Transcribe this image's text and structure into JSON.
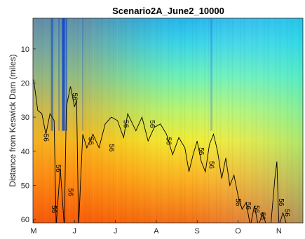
{
  "chart_data": {
    "type": "heatmap",
    "title": "Scenario2A_June2_10000",
    "xlabel": "",
    "ylabel": "Distance from Keswick Dam (miles)",
    "x_ticks": [
      "M",
      "J",
      "J",
      "A",
      "S",
      "O",
      "N"
    ],
    "y_ticks": [
      10,
      20,
      30,
      40,
      50,
      60
    ],
    "ylim": [
      61,
      1
    ],
    "y_reversed": true,
    "colormap": "jet",
    "contour": {
      "level": 56,
      "color": "#000000",
      "label": "56",
      "path_by_month": [
        [
          0.0,
          19
        ],
        [
          0.1,
          28
        ],
        [
          0.2,
          29
        ],
        [
          0.3,
          35
        ],
        [
          0.4,
          29
        ],
        [
          0.5,
          31
        ],
        [
          0.55,
          62
        ],
        [
          0.65,
          45
        ],
        [
          0.75,
          62
        ],
        [
          0.8,
          27
        ],
        [
          0.9,
          21
        ],
        [
          1.0,
          27
        ],
        [
          1.05,
          25
        ],
        [
          1.1,
          62
        ],
        [
          1.2,
          35
        ],
        [
          1.3,
          39
        ],
        [
          1.45,
          35
        ],
        [
          1.6,
          39
        ],
        [
          1.75,
          32
        ],
        [
          1.9,
          30
        ],
        [
          2.05,
          31
        ],
        [
          2.2,
          36
        ],
        [
          2.3,
          29
        ],
        [
          2.5,
          34
        ],
        [
          2.65,
          30
        ],
        [
          2.8,
          37
        ],
        [
          2.95,
          33
        ],
        [
          3.1,
          32
        ],
        [
          3.25,
          35
        ],
        [
          3.4,
          41
        ],
        [
          3.55,
          36
        ],
        [
          3.7,
          39
        ],
        [
          3.8,
          46
        ],
        [
          3.9,
          41
        ],
        [
          4.0,
          37
        ],
        [
          4.1,
          43
        ],
        [
          4.2,
          46
        ],
        [
          4.3,
          38
        ],
        [
          4.4,
          35
        ],
        [
          4.5,
          40
        ],
        [
          4.6,
          48
        ],
        [
          4.7,
          42
        ],
        [
          4.8,
          50
        ],
        [
          4.9,
          47
        ],
        [
          5.0,
          53
        ],
        [
          5.1,
          57
        ],
        [
          5.2,
          55
        ],
        [
          5.3,
          62
        ],
        [
          5.4,
          56
        ],
        [
          5.5,
          62
        ],
        [
          5.6,
          58
        ],
        [
          5.7,
          62
        ],
        [
          5.8,
          62
        ],
        [
          5.9,
          48
        ],
        [
          5.95,
          43
        ],
        [
          6.0,
          62
        ],
        [
          6.1,
          58
        ],
        [
          6.2,
          62
        ]
      ],
      "label_positions_by_month": [
        [
          0.25,
          36
        ],
        [
          0.55,
          45
        ],
        [
          0.45,
          57
        ],
        [
          0.95,
          24
        ],
        [
          0.85,
          52
        ],
        [
          1.35,
          37
        ],
        [
          1.85,
          39
        ],
        [
          2.2,
          32
        ],
        [
          2.85,
          32
        ],
        [
          3.25,
          37
        ],
        [
          4.05,
          40
        ],
        [
          4.3,
          44
        ],
        [
          4.95,
          55
        ],
        [
          5.2,
          56
        ],
        [
          5.4,
          57
        ],
        [
          5.55,
          59
        ],
        [
          6.0,
          55
        ],
        [
          6.15,
          58
        ]
      ]
    },
    "data_range_months": [
      0,
      6.6
    ]
  }
}
